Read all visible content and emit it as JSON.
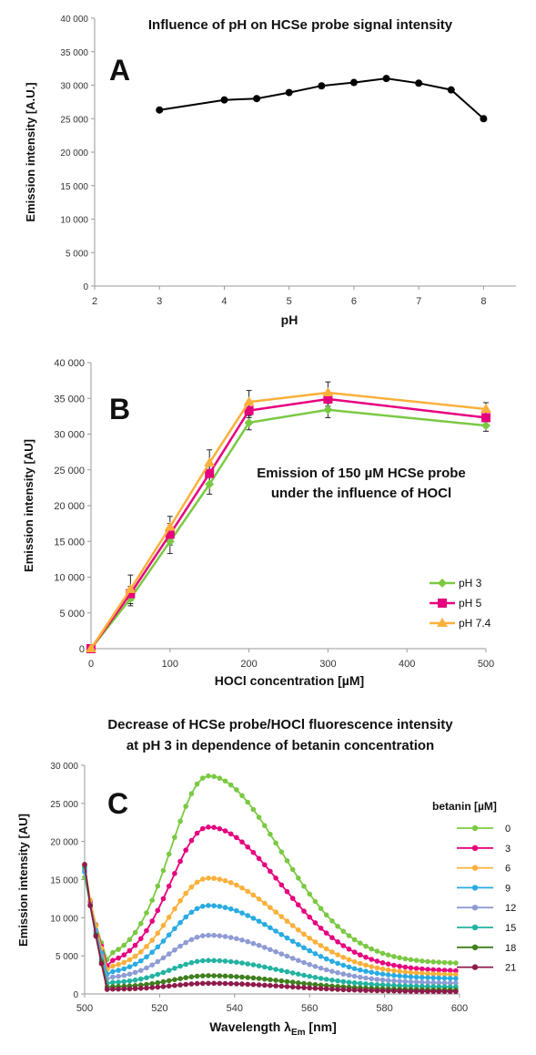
{
  "chart_data": [
    {
      "panel_letter": "A",
      "type": "line",
      "title": "Influence of pH on HCSe probe signal intensity",
      "xlabel": "pH",
      "ylabel": "Emission intensity [A.U.]",
      "xlim": [
        2,
        8.5
      ],
      "ylim": [
        0,
        40000
      ],
      "xticks": [
        2,
        3,
        4,
        5,
        6,
        7,
        8
      ],
      "yticks": [
        0,
        5000,
        10000,
        15000,
        20000,
        25000,
        30000,
        35000,
        40000
      ],
      "ytick_labels": [
        "0",
        "5 000",
        "10 000",
        "15 000",
        "20 000",
        "25 000",
        "30 000",
        "35 000",
        "40 000"
      ],
      "grid": false,
      "legend": "none",
      "series": [
        {
          "color": "#000000",
          "x": [
            3,
            4,
            4.5,
            5,
            5.5,
            6,
            6.5,
            7,
            7.5,
            8
          ],
          "y": [
            26300,
            27800,
            28000,
            28900,
            29900,
            30400,
            31000,
            30300,
            29300,
            25000
          ]
        }
      ]
    },
    {
      "panel_letter": "B",
      "type": "line",
      "title": "Emission of 150 µM HCSe probe under the influence of HOCl",
      "xlabel": "HOCl  concentration [µM]",
      "ylabel": "Emission  intensity [AU]",
      "xlim": [
        0,
        500
      ],
      "ylim": [
        0,
        40000
      ],
      "xticks": [
        0,
        100,
        200,
        300,
        400,
        500
      ],
      "yticks": [
        0,
        5000,
        10000,
        15000,
        20000,
        25000,
        30000,
        35000,
        40000
      ],
      "ytick_labels": [
        "0",
        "5 000",
        "10 000",
        "15 000",
        "20 000",
        "25 000",
        "30 000",
        "35 000",
        "40 000"
      ],
      "grid": false,
      "legend": "right",
      "series": [
        {
          "name": "pH 3",
          "color": "#7ac943",
          "marker": "diamond",
          "x": [
            0,
            50,
            100,
            150,
            200,
            300,
            500
          ],
          "y": [
            0,
            7000,
            15000,
            23000,
            31600,
            33400,
            31200
          ],
          "err": [
            0,
            1000,
            1700,
            1400,
            1000,
            1100,
            800
          ]
        },
        {
          "name": "pH 5",
          "color": "#e6007e",
          "marker": "square",
          "x": [
            0,
            50,
            100,
            150,
            200,
            300,
            500
          ],
          "y": [
            0,
            7700,
            16000,
            24500,
            33300,
            34900,
            32300
          ],
          "err": [
            0,
            1000,
            1500,
            1400,
            1000,
            1000,
            900
          ]
        },
        {
          "name": "pH 7.4",
          "color": "#fbb03b",
          "marker": "triangle",
          "x": [
            0,
            50,
            100,
            150,
            200,
            300,
            500
          ],
          "y": [
            0,
            8300,
            17000,
            26000,
            34500,
            35800,
            33500
          ],
          "err": [
            0,
            2000,
            1500,
            1800,
            1600,
            1500,
            900
          ]
        }
      ]
    },
    {
      "panel_letter": "C",
      "type": "line",
      "title": "Decrease of HCSe probe/HOCl fluorescence intensity at pH 3 in dependence of betanin concentration",
      "title_lines": [
        "Decrease of HCSe probe/HOCl fluorescence intensity",
        "at pH 3 in dependence of betanin concentration"
      ],
      "xlabel_main": "Wavelength λ",
      "xlabel_sub": "Em",
      "xlabel_unit": " [nm]",
      "ylabel": "Emission intensity [AU]",
      "xlim": [
        500,
        600
      ],
      "ylim": [
        0,
        30000
      ],
      "xticks": [
        500,
        520,
        540,
        560,
        580,
        600
      ],
      "yticks": [
        0,
        5000,
        10000,
        15000,
        20000,
        25000,
        30000
      ],
      "ytick_labels": [
        "0",
        "5 000",
        "10 000",
        "15 000",
        "20 000",
        "25 000",
        "30 000"
      ],
      "grid": false,
      "legend": "right",
      "legend_title": "betanin [µM]",
      "x_start": 500,
      "x_step": 1.5,
      "series": [
        {
          "name": "0",
          "color": "#7ac943",
          "peak": 28600,
          "start": 15300,
          "dip": 4500,
          "tail": 4000
        },
        {
          "name": "3",
          "color": "#e6007e",
          "peak": 21900,
          "start": 16200,
          "dip": 3700,
          "tail": 3000
        },
        {
          "name": "6",
          "color": "#fbb03b",
          "peak": 15200,
          "start": 16800,
          "dip": 3200,
          "tail": 2500
        },
        {
          "name": "9",
          "color": "#29abe2",
          "peak": 11600,
          "start": 16000,
          "dip": 2600,
          "tail": 2000
        },
        {
          "name": "12",
          "color": "#8e9cd4",
          "peak": 7700,
          "start": 16400,
          "dip": 2000,
          "tail": 1400
        },
        {
          "name": "15",
          "color": "#22b3a1",
          "peak": 4400,
          "start": 16600,
          "dip": 1400,
          "tail": 900
        },
        {
          "name": "18",
          "color": "#3f7f1e",
          "peak": 2400,
          "start": 16900,
          "dip": 900,
          "tail": 500
        },
        {
          "name": "21",
          "color": "#8e1b4b",
          "peak": 1400,
          "start": 17000,
          "dip": 600,
          "tail": 300
        }
      ]
    }
  ]
}
